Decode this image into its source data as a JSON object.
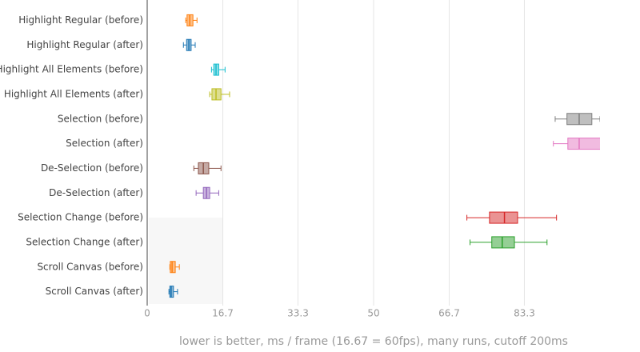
{
  "chart_data": {
    "type": "box",
    "x_label": "lower is better, ms / frame (16.67 = 60fps), many runs, cutoff 200ms",
    "xlim": [
      0,
      100
    ],
    "xticks": [
      0,
      16.7,
      33.3,
      50,
      66.7,
      83.3
    ],
    "grid": true,
    "boxes": [
      {
        "name": "Highlight Regular (before)",
        "color": "#ff7f0e",
        "min": 8.5,
        "q1": 8.8,
        "median": 9.4,
        "q3": 10.1,
        "max": 11.0
      },
      {
        "name": "Highlight Regular (after)",
        "color": "#1f77b4",
        "min": 8.0,
        "q1": 8.7,
        "median": 9.2,
        "q3": 9.7,
        "max": 10.6
      },
      {
        "name": "Highlight All Elements (before)",
        "color": "#17becf",
        "min": 14.2,
        "q1": 14.7,
        "median": 15.2,
        "q3": 15.8,
        "max": 17.2
      },
      {
        "name": "Highlight All Elements (after)",
        "color": "#bcbd22",
        "min": 13.8,
        "q1": 14.3,
        "median": 15.2,
        "q3": 16.3,
        "max": 18.2
      },
      {
        "name": "Selection (before)",
        "color": "#7f7f7f",
        "min": 90.1,
        "q1": 92.7,
        "median": 95.4,
        "q3": 98.2,
        "max": 100.0
      },
      {
        "name": "Selection (after)",
        "color": "#e377c2",
        "min": 89.7,
        "q1": 92.9,
        "median": 95.4,
        "q3": 101,
        "max": 104
      },
      {
        "name": "De-Selection (before)",
        "color": "#8c564b",
        "min": 10.3,
        "q1": 11.3,
        "median": 12.4,
        "q3": 13.6,
        "max": 16.3
      },
      {
        "name": "De-Selection (after)",
        "color": "#9467bd",
        "min": 10.8,
        "q1": 12.4,
        "median": 13.1,
        "q3": 13.8,
        "max": 15.8
      },
      {
        "name": "Selection Change (before)",
        "color": "#d62728",
        "min": 70.6,
        "q1": 75.6,
        "median": 78.9,
        "q3": 81.8,
        "max": 90.4
      },
      {
        "name": "Selection Change (after)",
        "color": "#2ca02c",
        "min": 71.3,
        "q1": 76.1,
        "median": 78.4,
        "q3": 81.1,
        "max": 88.3
      },
      {
        "name": "Scroll Canvas (before)",
        "color": "#ff7f0e",
        "min": 5.0,
        "q1": 5.1,
        "median": 5.5,
        "q3": 6.2,
        "max": 7.1
      },
      {
        "name": "Scroll Canvas (after)",
        "color": "#1f77b4",
        "min": 4.8,
        "q1": 5.0,
        "median": 5.3,
        "q3": 5.8,
        "max": 6.7
      }
    ]
  }
}
